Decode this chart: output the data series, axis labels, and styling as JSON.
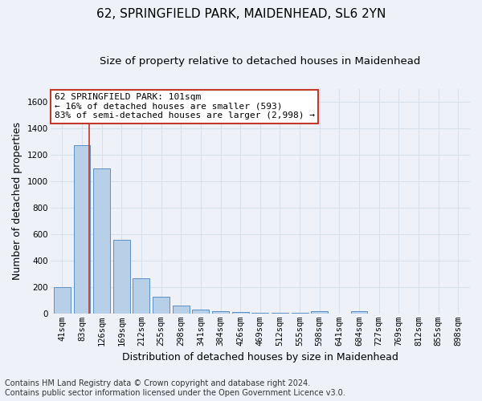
{
  "title": "62, SPRINGFIELD PARK, MAIDENHEAD, SL6 2YN",
  "subtitle": "Size of property relative to detached houses in Maidenhead",
  "xlabel": "Distribution of detached houses by size in Maidenhead",
  "ylabel": "Number of detached properties",
  "footnote1": "Contains HM Land Registry data © Crown copyright and database right 2024.",
  "footnote2": "Contains public sector information licensed under the Open Government Licence v3.0.",
  "categories": [
    "41sqm",
    "83sqm",
    "126sqm",
    "169sqm",
    "212sqm",
    "255sqm",
    "298sqm",
    "341sqm",
    "384sqm",
    "426sqm",
    "469sqm",
    "512sqm",
    "555sqm",
    "598sqm",
    "641sqm",
    "684sqm",
    "727sqm",
    "769sqm",
    "812sqm",
    "855sqm",
    "898sqm"
  ],
  "values": [
    200,
    1270,
    1095,
    555,
    265,
    125,
    60,
    32,
    18,
    12,
    8,
    5,
    3,
    20,
    0,
    20,
    0,
    0,
    0,
    0,
    0
  ],
  "bar_color": "#b8cfe8",
  "bar_edge_color": "#5b8fc4",
  "vline_x": 1.35,
  "vline_color": "#c0392b",
  "annotation_text": "62 SPRINGFIELD PARK: 101sqm\n← 16% of detached houses are smaller (593)\n83% of semi-detached houses are larger (2,998) →",
  "annotation_box_color": "#ffffff",
  "annotation_box_edge": "#c0392b",
  "ylim": [
    0,
    1700
  ],
  "yticks": [
    0,
    200,
    400,
    600,
    800,
    1000,
    1200,
    1400,
    1600
  ],
  "background_color": "#eef2f8",
  "grid_color": "#d8e0ec",
  "title_fontsize": 11,
  "subtitle_fontsize": 9.5,
  "axis_label_fontsize": 9,
  "tick_fontsize": 7.5,
  "footnote_fontsize": 7
}
